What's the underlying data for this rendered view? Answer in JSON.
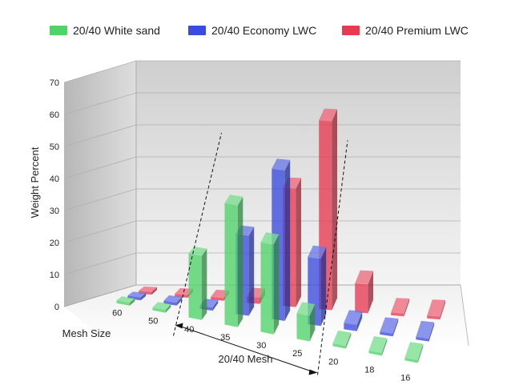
{
  "chart_data": {
    "type": "bar",
    "style": "3d-grouped",
    "title": "",
    "ylabel": "Weight Percent",
    "xlabel": "Mesh Size",
    "ylim": [
      0,
      70
    ],
    "yticks": [
      0,
      10,
      20,
      30,
      40,
      50,
      60,
      70
    ],
    "categories": [
      "60",
      "50",
      "40",
      "35",
      "30",
      "25",
      "20",
      "18",
      "16"
    ],
    "series": [
      {
        "name": "20/40 White sand",
        "color": "#4fd36a",
        "values": [
          0,
          0,
          20,
          38,
          28,
          8,
          0,
          0,
          0
        ]
      },
      {
        "name": "20/40 Economy LWC",
        "color": "#3a4ce0",
        "values": [
          0,
          0,
          1,
          25,
          47,
          21,
          2,
          0,
          0
        ]
      },
      {
        "name": "20/40 Premium LWC",
        "color": "#e93a52",
        "values": [
          0,
          0,
          0,
          2,
          37,
          59,
          9,
          0,
          0
        ]
      }
    ],
    "annotation": {
      "text": "20/40 Mesh",
      "from_category": "40",
      "to_category": "25"
    },
    "legend_position": "top"
  }
}
